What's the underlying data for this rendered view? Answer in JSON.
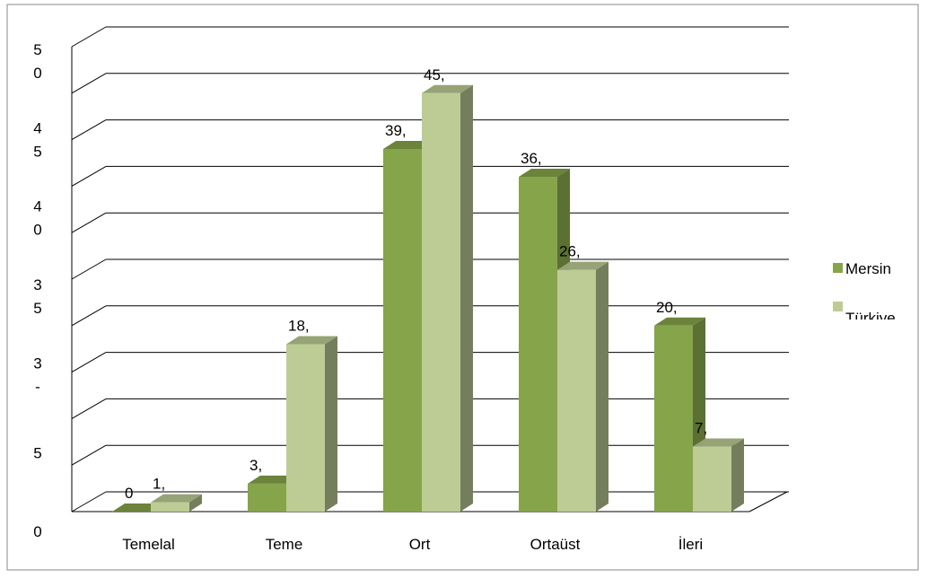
{
  "chart_data": {
    "type": "bar3d",
    "categories": [
      "Temelal",
      "Teme",
      "Ort",
      "Ortaüst",
      "İleri"
    ],
    "series": [
      {
        "name": "Mersin",
        "color": "#86a44a",
        "values": [
          0,
          3,
          39,
          36,
          20
        ],
        "value_labels": [
          "0",
          "3,",
          "39,",
          "36,",
          "20,"
        ]
      },
      {
        "name": "Türkiye",
        "color": "#bccc94",
        "values": [
          1,
          18,
          45,
          26,
          7
        ],
        "value_labels": [
          "1,",
          "18,",
          "45,",
          "26,",
          "7,"
        ]
      }
    ],
    "ylim": [
      0,
      50
    ],
    "yticks": [
      0,
      5,
      10,
      15,
      20,
      25,
      30,
      35,
      40,
      45,
      50
    ],
    "y_axis_labels": [
      [
        "5",
        "0"
      ],
      [
        "4",
        "5"
      ],
      [
        "4",
        "0"
      ],
      [
        "3",
        "5"
      ],
      [
        "3",
        "-"
      ],
      [
        "5"
      ],
      [
        "0"
      ]
    ],
    "grid": true
  }
}
